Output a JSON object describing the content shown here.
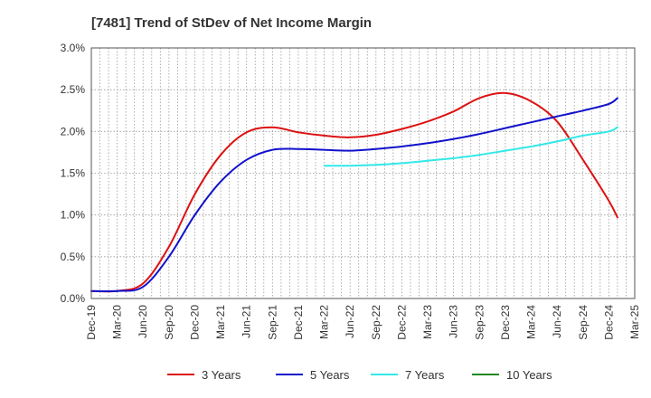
{
  "chart_data": {
    "type": "line",
    "title": "[7481]  Trend of StDev of Net Income Margin",
    "xlabel": "",
    "ylabel": "",
    "x_ticks": [
      "Dec-19",
      "Mar-20",
      "Jun-20",
      "Sep-20",
      "Dec-20",
      "Mar-21",
      "Jun-21",
      "Sep-21",
      "Dec-21",
      "Mar-22",
      "Jun-22",
      "Sep-22",
      "Dec-22",
      "Mar-23",
      "Jun-23",
      "Sep-23",
      "Dec-23",
      "Mar-24",
      "Jun-24",
      "Sep-24",
      "Dec-24",
      "Mar-25"
    ],
    "y_ticks": [
      "0.0%",
      "0.5%",
      "1.0%",
      "1.5%",
      "2.0%",
      "2.5%",
      "3.0%"
    ],
    "ylim": [
      0,
      3.0
    ],
    "grid": true,
    "legend_position": "bottom",
    "series": [
      {
        "name": "3 Years",
        "color": "#dd1111",
        "points": [
          [
            "Dec-19",
            0.09
          ],
          [
            "Mar-20",
            0.09
          ],
          [
            "Jun-20",
            0.18
          ],
          [
            "Sep-20",
            0.62
          ],
          [
            "Dec-20",
            1.25
          ],
          [
            "Mar-21",
            1.72
          ],
          [
            "Jun-21",
            1.99
          ],
          [
            "Sep-21",
            2.05
          ],
          [
            "Dec-21",
            1.99
          ],
          [
            "Mar-22",
            1.95
          ],
          [
            "Jun-22",
            1.93
          ],
          [
            "Sep-22",
            1.96
          ],
          [
            "Dec-22",
            2.03
          ],
          [
            "Mar-23",
            2.12
          ],
          [
            "Jun-23",
            2.24
          ],
          [
            "Sep-23",
            2.4
          ],
          [
            "Dec-23",
            2.46
          ],
          [
            "Mar-24",
            2.36
          ],
          [
            "Jun-24",
            2.12
          ],
          [
            "Sep-24",
            1.66
          ],
          [
            "Dec-24",
            1.17
          ],
          [
            "Jan-25",
            0.97
          ]
        ]
      },
      {
        "name": "5 Years",
        "color": "#1111cc",
        "points": [
          [
            "Dec-19",
            0.09
          ],
          [
            "Mar-20",
            0.09
          ],
          [
            "Jun-20",
            0.14
          ],
          [
            "Sep-20",
            0.5
          ],
          [
            "Dec-20",
            1.0
          ],
          [
            "Mar-21",
            1.4
          ],
          [
            "Jun-21",
            1.66
          ],
          [
            "Sep-21",
            1.78
          ],
          [
            "Dec-21",
            1.79
          ],
          [
            "Mar-22",
            1.78
          ],
          [
            "Jun-22",
            1.77
          ],
          [
            "Sep-22",
            1.79
          ],
          [
            "Dec-22",
            1.82
          ],
          [
            "Mar-23",
            1.86
          ],
          [
            "Jun-23",
            1.91
          ],
          [
            "Sep-23",
            1.97
          ],
          [
            "Dec-23",
            2.04
          ],
          [
            "Mar-24",
            2.11
          ],
          [
            "Jun-24",
            2.18
          ],
          [
            "Sep-24",
            2.25
          ],
          [
            "Dec-24",
            2.33
          ],
          [
            "Jan-25",
            2.4
          ]
        ]
      },
      {
        "name": "7 Years",
        "color": "#33e8e8",
        "points": [
          [
            "Mar-22",
            1.59
          ],
          [
            "Jun-22",
            1.59
          ],
          [
            "Sep-22",
            1.6
          ],
          [
            "Dec-22",
            1.62
          ],
          [
            "Mar-23",
            1.65
          ],
          [
            "Jun-23",
            1.68
          ],
          [
            "Sep-23",
            1.72
          ],
          [
            "Dec-23",
            1.77
          ],
          [
            "Mar-24",
            1.82
          ],
          [
            "Jun-24",
            1.88
          ],
          [
            "Sep-24",
            1.95
          ],
          [
            "Dec-24",
            2.0
          ],
          [
            "Jan-25",
            2.05
          ]
        ]
      },
      {
        "name": "10 Years",
        "color": "#228822",
        "points": []
      }
    ]
  }
}
